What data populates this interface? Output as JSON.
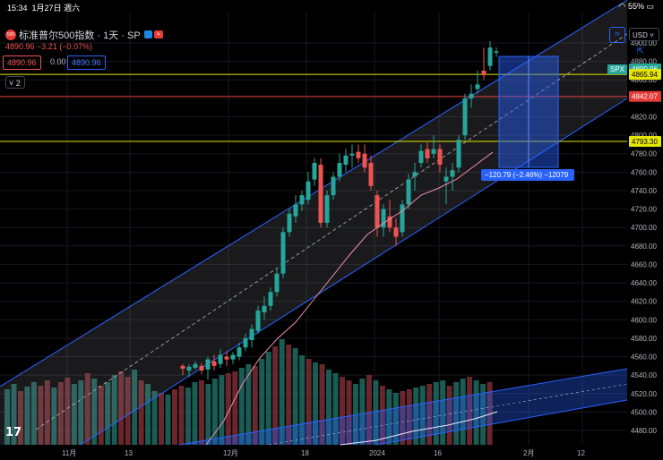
{
  "status_bar": {
    "time": "15:34",
    "date": "1月27日 週六",
    "battery": "55%"
  },
  "header": {
    "symbol_badge": "500",
    "title": "标准普尔500指数 · 1天 · SP",
    "dots": "· · ·",
    "wave_icon": "≈",
    "last": "4890.96 −3.21 (−0.07%)",
    "sell_price": "4890.96",
    "spread": "0.00",
    "buy_price": "4890.96",
    "indicator_count": "2",
    "currency": "USD",
    "crosshair_icon": "⌗",
    "expand_icon": "⇱"
  },
  "price_axis": {
    "ticks": [
      "4900.00",
      "4880.00",
      "4860.00",
      "4840.00",
      "4820.00",
      "4800.00",
      "4780.00",
      "4760.00",
      "4740.00",
      "4720.00",
      "4700.00",
      "4680.00",
      "4660.00",
      "4640.00",
      "4620.00",
      "4600.00",
      "4580.00",
      "4560.00",
      "4540.00",
      "4520.00",
      "4500.00",
      "4480.00"
    ],
    "symbol_tag": "SPX",
    "current": "4890.96",
    "line1": "4865.94",
    "line2": "4842.07",
    "line3": "4793.30"
  },
  "time_axis": {
    "labels": [
      "11月",
      "13",
      "12月",
      "18",
      "2024",
      "16",
      "2月",
      "12"
    ]
  },
  "measure_label": "−120.79 (−2.46%) −12079",
  "colors": {
    "up": "#26a69a",
    "down": "#ef5350",
    "channel": "#2962ff",
    "hline": "#e6e600",
    "redline": "#e53935"
  },
  "logo": "17"
}
